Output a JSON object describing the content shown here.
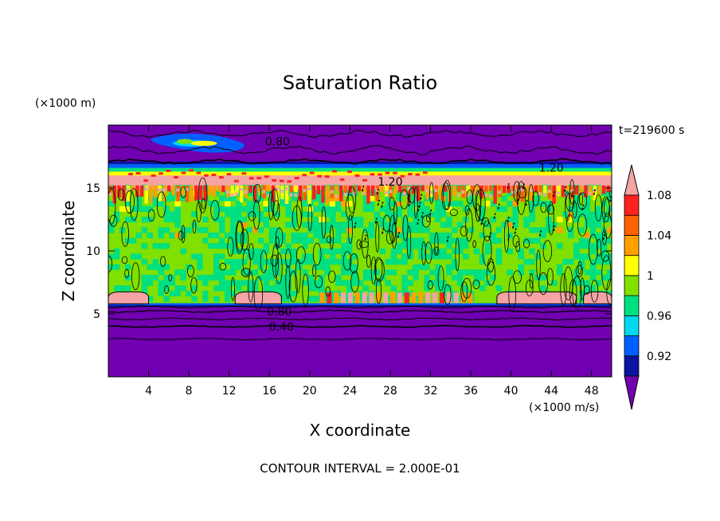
{
  "chart_data": {
    "type": "heatmap",
    "title": "Saturation Ratio",
    "xlabel": "X coordinate",
    "ylabel": "Z coordinate",
    "x_unit": "(×1000 m/s)",
    "y_unit": "(×1000 m)",
    "time_label": "t=219600 s",
    "footer": "CONTOUR INTERVAL = 2.000E-01",
    "xlim": [
      0,
      50
    ],
    "ylim": [
      0,
      20
    ],
    "x_ticks": [
      4,
      8,
      12,
      16,
      20,
      24,
      28,
      32,
      36,
      40,
      44,
      48
    ],
    "y_ticks": [
      5,
      10,
      15
    ],
    "colorbar": {
      "labels": [
        "0.92",
        "0.96",
        "1",
        "1.04",
        "1.08"
      ],
      "colors": [
        "#7000b0",
        "#0a14a0",
        "#0060ff",
        "#00d8f0",
        "#00e080",
        "#80e000",
        "#ffff00",
        "#ffa000",
        "#ff6000",
        "#ff2020",
        "#f4a4a4"
      ]
    },
    "contour_labels": [
      {
        "text": "0.80",
        "x": 16.8,
        "z": 18.7
      },
      {
        "text": "1.20",
        "x": 28.0,
        "z": 15.5
      },
      {
        "text": "1.20",
        "x": 44.0,
        "z": 16.6
      },
      {
        "text": "0.80",
        "x": 17.0,
        "z": 5.2
      },
      {
        "text": "0.40",
        "x": 17.2,
        "z": 4.0
      }
    ]
  }
}
